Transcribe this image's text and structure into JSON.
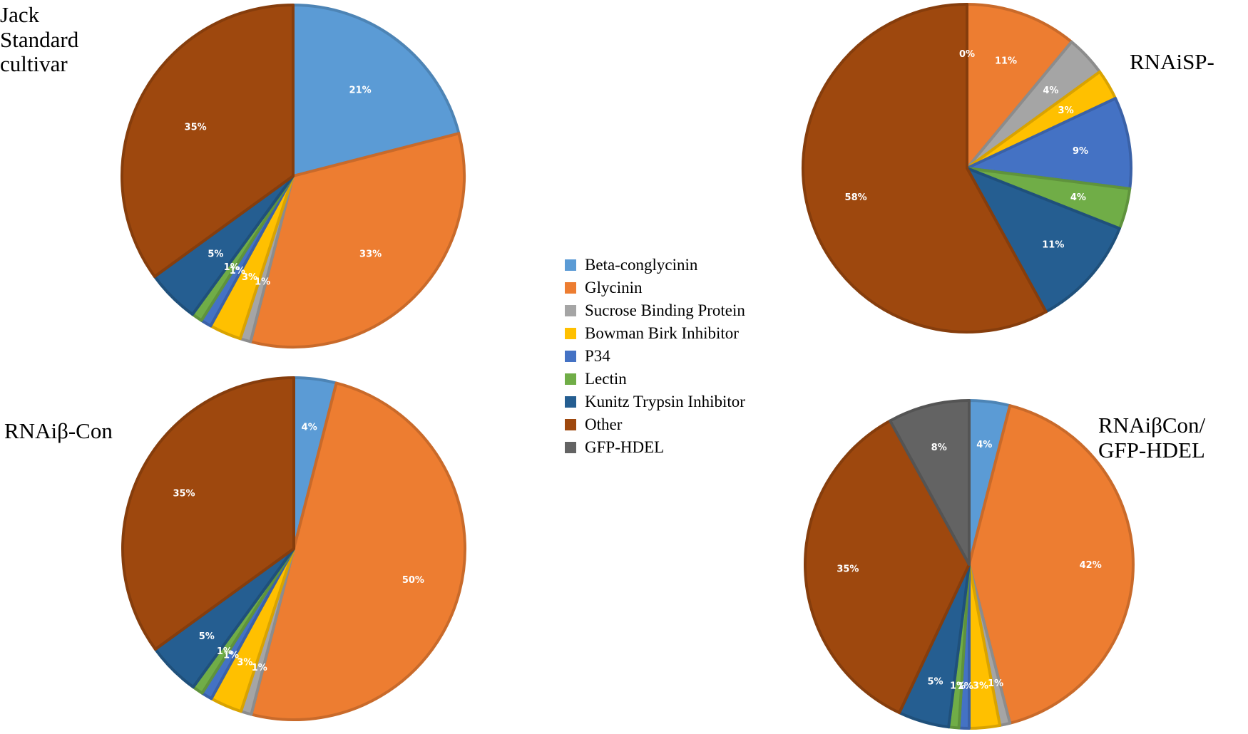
{
  "chart_data": [
    {
      "type": "pie",
      "title": "Jack\nStandard\ncultivar",
      "slices": [
        {
          "category": "Beta-conglycinin",
          "value": 21,
          "label": "21%"
        },
        {
          "category": "Glycinin",
          "value": 33,
          "label": "33%"
        },
        {
          "category": "Sucrose Binding Protein",
          "value": 1,
          "label": "1%"
        },
        {
          "category": "Bowman Birk Inhibitor",
          "value": 3,
          "label": "3%"
        },
        {
          "category": "P34",
          "value": 1,
          "label": "1%"
        },
        {
          "category": "Lectin",
          "value": 1,
          "label": "1%"
        },
        {
          "category": "Kunitz Trypsin Inhibitor",
          "value": 5,
          "label": "5%"
        },
        {
          "category": "Other",
          "value": 35,
          "label": "35%"
        }
      ]
    },
    {
      "type": "pie",
      "title": "RNAiSP-",
      "slices": [
        {
          "category": "Beta-conglycinin",
          "value": 0,
          "label": "0%"
        },
        {
          "category": "Glycinin",
          "value": 11,
          "label": "11%"
        },
        {
          "category": "Sucrose Binding Protein",
          "value": 4,
          "label": "4%"
        },
        {
          "category": "Bowman Birk Inhibitor",
          "value": 3,
          "label": "3%"
        },
        {
          "category": "P34",
          "value": 9,
          "label": "9%"
        },
        {
          "category": "Lectin",
          "value": 4,
          "label": "4%"
        },
        {
          "category": "Kunitz Trypsin Inhibitor",
          "value": 11,
          "label": "11%"
        },
        {
          "category": "Other",
          "value": 58,
          "label": "58%"
        }
      ]
    },
    {
      "type": "pie",
      "title": "RNAiβ-Con",
      "slices": [
        {
          "category": "Beta-conglycinin",
          "value": 4,
          "label": "4%"
        },
        {
          "category": "Glycinin",
          "value": 50,
          "label": "50%"
        },
        {
          "category": "Sucrose Binding Protein",
          "value": 1,
          "label": "1%"
        },
        {
          "category": "Bowman Birk Inhibitor",
          "value": 3,
          "label": "3%"
        },
        {
          "category": "P34",
          "value": 1,
          "label": "1%"
        },
        {
          "category": "Lectin",
          "value": 1,
          "label": "1%"
        },
        {
          "category": "Kunitz Trypsin Inhibitor",
          "value": 5,
          "label": "5%"
        },
        {
          "category": "Other",
          "value": 35,
          "label": "35%"
        }
      ]
    },
    {
      "type": "pie",
      "title": "RNAiβCon/\nGFP-HDEL",
      "slices": [
        {
          "category": "Beta-conglycinin",
          "value": 4,
          "label": "4%"
        },
        {
          "category": "Glycinin",
          "value": 42,
          "label": "42%"
        },
        {
          "category": "Sucrose Binding Protein",
          "value": 1,
          "label": "1%"
        },
        {
          "category": "Bowman Birk Inhibitor",
          "value": 3,
          "label": "3%"
        },
        {
          "category": "P34",
          "value": 1,
          "label": "1%"
        },
        {
          "category": "Lectin",
          "value": 1,
          "label": "1%"
        },
        {
          "category": "Kunitz Trypsin Inhibitor",
          "value": 5,
          "label": "5%"
        },
        {
          "category": "Other",
          "value": 35,
          "label": "35%"
        },
        {
          "category": "GFP-HDEL",
          "value": 8,
          "label": "8%"
        }
      ]
    }
  ],
  "legend": {
    "placement": "center",
    "items": [
      {
        "label": "Beta-conglycinin",
        "color": "#5B9BD5"
      },
      {
        "label": "Glycinin",
        "color": "#ED7D31"
      },
      {
        "label": "Sucrose Binding Protein",
        "color": "#A5A5A5"
      },
      {
        "label": "Bowman Birk Inhibitor",
        "color": "#FFC000"
      },
      {
        "label": "P34",
        "color": "#4472C4"
      },
      {
        "label": "Lectin",
        "color": "#70AD47"
      },
      {
        "label": "Kunitz Trypsin Inhibitor",
        "color": "#255E91"
      },
      {
        "label": "Other",
        "color": "#9E480E"
      },
      {
        "label": "GFP-HDEL",
        "color": "#636363"
      }
    ]
  }
}
